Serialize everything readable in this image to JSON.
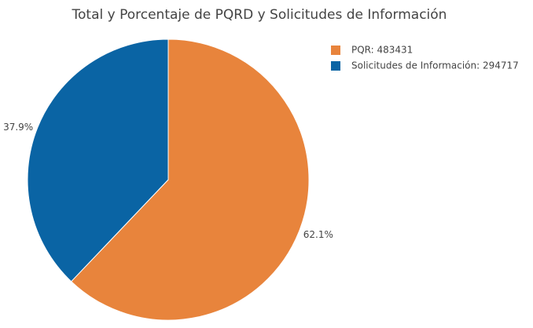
{
  "chart_data": {
    "type": "pie",
    "title": "Total y Porcentaje de PQRD y Solicitudes de Información",
    "categories": [
      "PQR: 483431",
      "Solicitudes de Información: 294717"
    ],
    "values": [
      62.1,
      37.9
    ],
    "value_labels": [
      "62.1%",
      "37.9%"
    ],
    "colors": [
      "#e8843c",
      "#0a64a4"
    ],
    "legend": "top-right"
  }
}
